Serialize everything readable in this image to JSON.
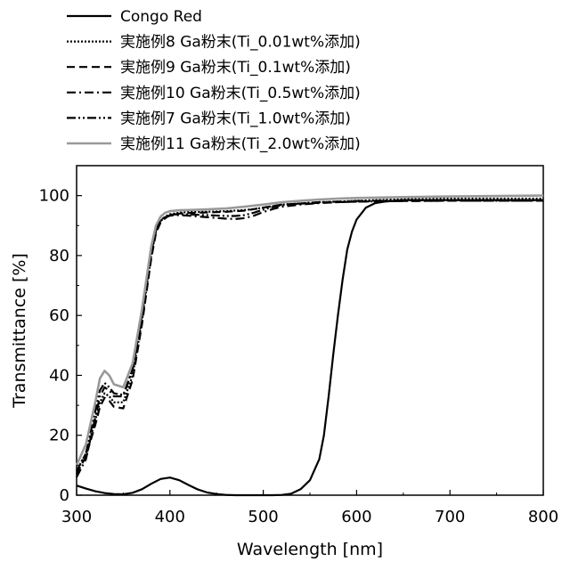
{
  "chart_data": {
    "type": "line",
    "xlabel": "Wavelength [nm]",
    "ylabel": "Transmittance [%]",
    "xlim": [
      300,
      800
    ],
    "ylim": [
      0,
      110
    ],
    "xticks": [
      300,
      400,
      500,
      600,
      700,
      800
    ],
    "yticks": [
      0,
      20,
      40,
      60,
      80,
      100
    ],
    "grid": false,
    "legend_position": "top-left, above plot",
    "series": [
      {
        "name": "Congo Red",
        "color": "#000000",
        "dash": "solid",
        "x": [
          300,
          310,
          320,
          330,
          340,
          350,
          360,
          370,
          380,
          390,
          400,
          410,
          420,
          430,
          440,
          450,
          460,
          470,
          480,
          490,
          500,
          510,
          520,
          530,
          540,
          550,
          560,
          565,
          570,
          575,
          580,
          585,
          590,
          595,
          600,
          610,
          620,
          630,
          650,
          700,
          800
        ],
        "y": [
          3.2,
          2.2,
          1.3,
          0.7,
          0.4,
          0.3,
          0.8,
          2.0,
          3.8,
          5.4,
          5.9,
          5.0,
          3.4,
          1.9,
          0.9,
          0.4,
          0.1,
          0,
          0,
          0,
          0,
          0,
          0.1,
          0.5,
          2,
          5,
          12,
          20,
          33,
          47,
          60,
          72,
          82,
          88,
          92,
          96,
          97.5,
          98,
          98.5,
          98.5,
          98.5
        ]
      },
      {
        "name": "実施例8 Ga粉末(Ti_0.01wt%添加)",
        "color": "#000000",
        "dash": "dotted",
        "x": [
          300,
          310,
          320,
          325,
          330,
          335,
          340,
          350,
          360,
          370,
          380,
          385,
          390,
          395,
          400,
          410,
          420,
          440,
          460,
          480,
          490,
          500,
          510,
          520,
          540,
          560,
          580,
          600,
          650,
          700,
          800
        ],
        "y": [
          8,
          14,
          25,
          31,
          34,
          33,
          31,
          31,
          40,
          58,
          80,
          88,
          91.5,
          93,
          93.8,
          94.3,
          94.5,
          94.6,
          94.8,
          95.2,
          95.5,
          96,
          96.5,
          97,
          97.4,
          97.8,
          98,
          98.3,
          98.8,
          99,
          99
        ]
      },
      {
        "name": "実施例9 Ga粉末(Ti_0.1wt%添加)",
        "color": "#000000",
        "dash": "dashed",
        "x": [
          300,
          310,
          320,
          325,
          330,
          335,
          340,
          350,
          360,
          370,
          380,
          385,
          390,
          395,
          400,
          410,
          420,
          440,
          460,
          480,
          490,
          500,
          510,
          520,
          540,
          560,
          580,
          600,
          650,
          700,
          800
        ],
        "y": [
          7,
          13,
          23.5,
          29.5,
          32.5,
          31.5,
          29.5,
          29,
          38.5,
          57,
          79,
          87.5,
          91,
          92.5,
          93.5,
          94,
          94.2,
          94.4,
          94.6,
          95,
          95.5,
          96,
          96.5,
          97,
          97.3,
          97.6,
          97.8,
          98,
          98.2,
          98.3,
          98.3
        ]
      },
      {
        "name": "実施例10 Ga粉末(Ti_0.5wt%添加)",
        "color": "#000000",
        "dash": "dashdot",
        "x": [
          300,
          310,
          320,
          325,
          330,
          335,
          340,
          350,
          360,
          370,
          380,
          385,
          390,
          395,
          400,
          410,
          420,
          440,
          460,
          470,
          480,
          490,
          500,
          510,
          520,
          540,
          560,
          580,
          600,
          650,
          700,
          800
        ],
        "y": [
          6,
          12,
          26,
          33,
          36,
          35,
          33,
          33,
          42,
          60,
          81,
          88.5,
          91.5,
          92.8,
          93.3,
          93.5,
          93.3,
          92.8,
          92.3,
          92.2,
          92.5,
          93.3,
          94.5,
          95.5,
          96.3,
          97,
          97.5,
          97.8,
          98,
          98.2,
          98.3,
          98.3
        ]
      },
      {
        "name": "実施例7 Ga粉末(Ti_1.0wt%添加)",
        "color": "#000000",
        "dash": "dashdotdot",
        "x": [
          300,
          310,
          320,
          325,
          330,
          335,
          340,
          350,
          360,
          370,
          380,
          385,
          390,
          395,
          400,
          410,
          420,
          440,
          460,
          470,
          480,
          490,
          500,
          510,
          520,
          540,
          560,
          580,
          600,
          650,
          700,
          800
        ],
        "y": [
          8,
          14,
          28,
          35,
          37.5,
          36,
          34,
          33.5,
          42,
          60,
          81,
          88.5,
          91.8,
          93,
          93.6,
          93.8,
          93.7,
          93.5,
          93.2,
          93.2,
          93.5,
          94.3,
          95.3,
          96.2,
          96.8,
          97.4,
          97.8,
          98,
          98.2,
          98.4,
          98.5,
          98.5
        ]
      },
      {
        "name": "実施例11 Ga粉末(Ti_2.0wt%添加)",
        "color": "#999999",
        "dash": "solid",
        "x": [
          300,
          310,
          320,
          325,
          330,
          335,
          340,
          350,
          360,
          370,
          380,
          385,
          390,
          395,
          400,
          410,
          420,
          440,
          460,
          480,
          500,
          520,
          540,
          560,
          580,
          600,
          650,
          700,
          800
        ],
        "y": [
          10,
          17,
          31,
          39,
          41.5,
          40,
          37,
          36,
          44,
          62,
          83,
          90,
          93,
          94.3,
          94.8,
          95.1,
          95.2,
          95.4,
          95.7,
          96.3,
          97,
          97.8,
          98.3,
          98.7,
          99,
          99.2,
          99.5,
          99.7,
          100
        ]
      }
    ]
  }
}
